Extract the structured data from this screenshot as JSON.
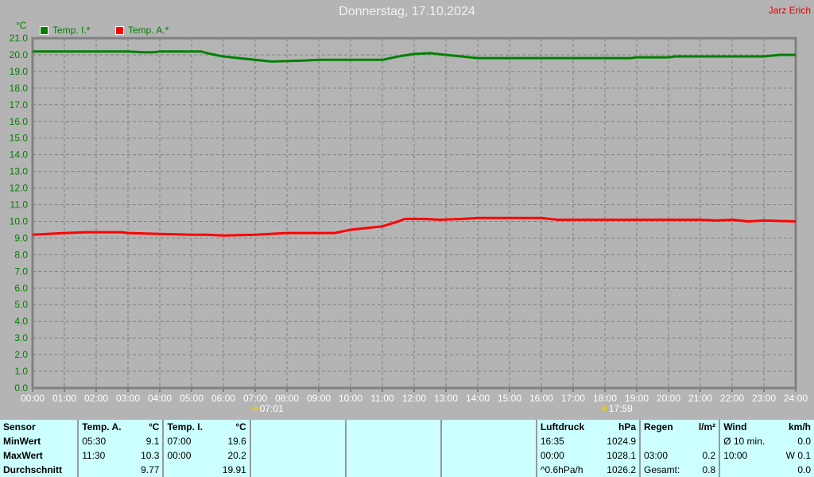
{
  "title": "Donnerstag, 17.10.2024",
  "author": "Jarz Erich",
  "chart_data": {
    "type": "line",
    "ylabel": "°C",
    "ylim": [
      0,
      21
    ],
    "yticks": [
      "0.0",
      "1.0",
      "2.0",
      "3.0",
      "4.0",
      "5.0",
      "6.0",
      "7.0",
      "8.0",
      "9.0",
      "10.0",
      "11.0",
      "12.0",
      "13.0",
      "14.0",
      "15.0",
      "16.0",
      "17.0",
      "18.0",
      "19.0",
      "20.0",
      "21.0"
    ],
    "xlim": [
      0,
      24
    ],
    "xticks": [
      "00:00",
      "01:00",
      "02:00",
      "03:00",
      "04:00",
      "05:00",
      "06:00",
      "07:00",
      "08:00",
      "09:00",
      "10:00",
      "11:00",
      "12:00",
      "13:00",
      "14:00",
      "15:00",
      "16:00",
      "17:00",
      "18:00",
      "19:00",
      "20:00",
      "21:00",
      "22:00",
      "23:00",
      "24:00"
    ],
    "grid": true,
    "legend": "top-left",
    "series": [
      {
        "name": "Temp. I.*",
        "color": "#008000",
        "x": [
          0,
          3,
          3.5,
          3.8,
          4,
          5.3,
          5.6,
          6,
          6.5,
          7,
          7.5,
          8.5,
          9,
          11,
          11.5,
          12,
          12.5,
          13,
          14,
          18.8,
          19,
          20,
          20.2,
          23,
          23.5,
          24
        ],
        "y": [
          20.2,
          20.2,
          20.15,
          20.15,
          20.2,
          20.2,
          20.05,
          19.9,
          19.8,
          19.7,
          19.6,
          19.65,
          19.7,
          19.7,
          19.9,
          20.05,
          20.1,
          20.0,
          19.8,
          19.8,
          19.85,
          19.85,
          19.9,
          19.9,
          20.0,
          20.0
        ]
      },
      {
        "name": "Temp. A.*",
        "color": "#ff0000",
        "x": [
          0,
          1,
          1.7,
          2.8,
          3,
          4,
          5,
          5.5,
          6,
          7,
          8,
          9.5,
          10,
          11,
          11.5,
          11.7,
          12.3,
          12.8,
          13.5,
          14,
          15,
          16,
          16.5,
          21,
          21.5,
          22,
          22.5,
          23,
          24
        ],
        "y": [
          9.2,
          9.3,
          9.35,
          9.35,
          9.3,
          9.25,
          9.2,
          9.2,
          9.15,
          9.2,
          9.3,
          9.3,
          9.5,
          9.7,
          10.0,
          10.15,
          10.15,
          10.1,
          10.15,
          10.2,
          10.2,
          10.2,
          10.1,
          10.1,
          10.05,
          10.1,
          10.0,
          10.05,
          10.0
        ]
      }
    ],
    "annotations": {
      "sunrise": "07:01",
      "sunset": "17:59"
    }
  },
  "table": {
    "rows": [
      [
        "Sensor",
        "Temp. A.",
        "°C",
        "Temp. I.",
        "°C",
        "",
        "",
        "",
        "Luftdruck",
        "hPa",
        "Regen",
        "l/m²",
        "Wind",
        "km/h"
      ],
      [
        "MinWert",
        "05:30",
        "9.1",
        "07:00",
        "19.6",
        "",
        "",
        "",
        "16:35",
        "1024.9",
        "",
        "",
        "Ø 10 min.",
        "0.0"
      ],
      [
        "MaxWert",
        "11:30",
        "10.3",
        "00:00",
        "20.2",
        "",
        "",
        "",
        "00:00",
        "1028.1",
        "03:00",
        "0.2",
        "10:00",
        "W 0.1"
      ],
      [
        "Durchschnitt",
        "",
        "9.77",
        "",
        "19.91",
        "",
        "",
        "",
        "^0.6hPa/h",
        "1026.2",
        "Gesamt:",
        "0.8",
        "",
        "0.0"
      ]
    ]
  }
}
